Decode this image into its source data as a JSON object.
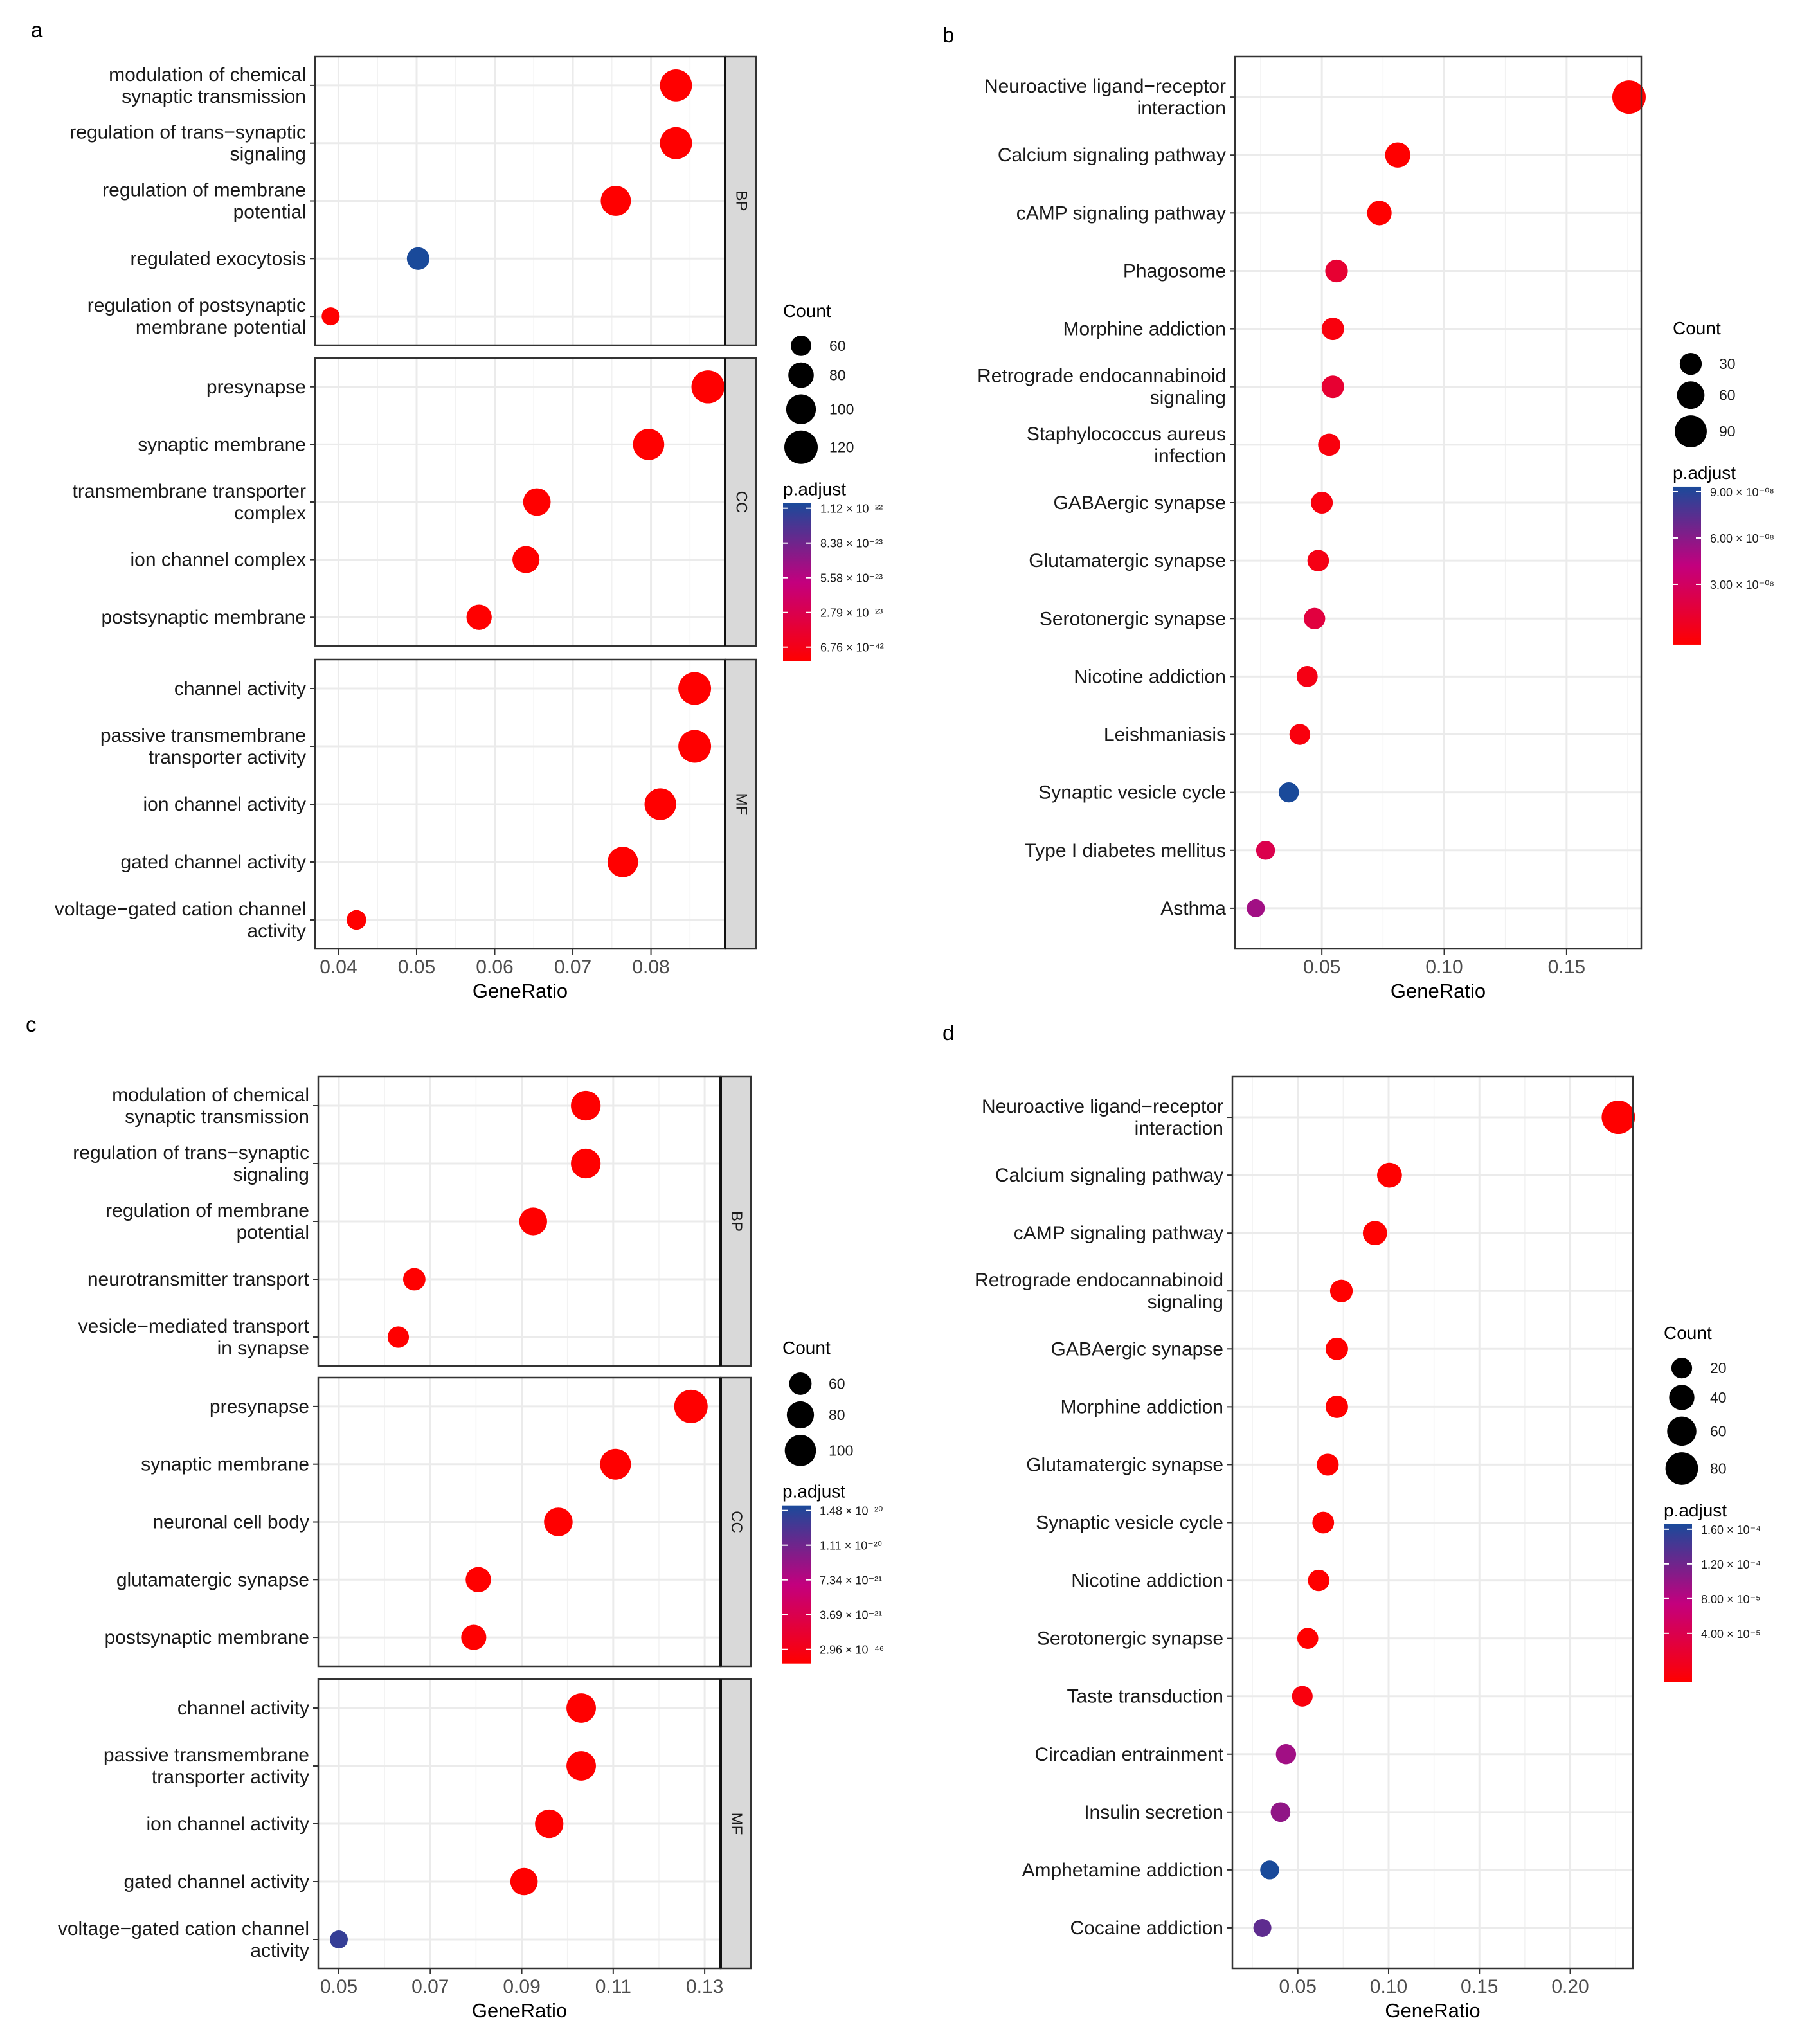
{
  "colors": {
    "low_p": "#ff0000",
    "mid_p": "#c3007e",
    "high_p": "#1a4a9a",
    "panel_bg": "#ffffff",
    "grid": "#ebebeb",
    "strip_bg": "#d9d9d9"
  },
  "chart_data": [
    {
      "id": "a",
      "type": "scatter",
      "layout": "go",
      "panel_label": "a",
      "xlabel": "GeneRatio",
      "xlim": [
        0.037,
        0.0895
      ],
      "xticks": [
        0.04,
        0.05,
        0.06,
        0.07,
        0.08
      ],
      "xtick_labels": [
        "0.04",
        "0.05",
        "0.06",
        "0.07",
        "0.08"
      ],
      "facets": [
        {
          "name": "BP",
          "points": [
            {
              "lines": [
                "modulation of chemical",
                "synaptic transmission"
              ],
              "x": 0.0832,
              "count": 112,
              "p": 0.0
            },
            {
              "lines": [
                "regulation of trans−synaptic",
                "signaling"
              ],
              "x": 0.0832,
              "count": 112,
              "p": 0.0
            },
            {
              "lines": [
                "regulation of membrane",
                "potential"
              ],
              "x": 0.0755,
              "count": 102,
              "p": 0.0
            },
            {
              "lines": [
                "regulated exocytosis"
              ],
              "x": 0.0502,
              "count": 68,
              "p": 1.0
            },
            {
              "lines": [
                "regulation of postsynaptic",
                "membrane potential"
              ],
              "x": 0.039,
              "count": 52,
              "p": 0.0
            }
          ]
        },
        {
          "name": "CC",
          "points": [
            {
              "lines": [
                "presynapse"
              ],
              "x": 0.0873,
              "count": 118,
              "p": 0.0
            },
            {
              "lines": [
                "synaptic membrane"
              ],
              "x": 0.0797,
              "count": 108,
              "p": 0.0
            },
            {
              "lines": [
                "transmembrane transporter",
                "complex"
              ],
              "x": 0.0654,
              "count": 89,
              "p": 0.0
            },
            {
              "lines": [
                "ion channel complex"
              ],
              "x": 0.064,
              "count": 87,
              "p": 0.0
            },
            {
              "lines": [
                "postsynaptic membrane"
              ],
              "x": 0.058,
              "count": 79,
              "p": 0.0
            }
          ]
        },
        {
          "name": "MF",
          "points": [
            {
              "lines": [
                "channel activity"
              ],
              "x": 0.0856,
              "count": 116,
              "p": 0.0
            },
            {
              "lines": [
                "passive transmembrane",
                "transporter activity"
              ],
              "x": 0.0856,
              "count": 116,
              "p": 0.0
            },
            {
              "lines": [
                "ion channel activity"
              ],
              "x": 0.0812,
              "count": 110,
              "p": 0.0
            },
            {
              "lines": [
                "gated channel activity"
              ],
              "x": 0.0764,
              "count": 104,
              "p": 0.0
            },
            {
              "lines": [
                "voltage−gated cation channel",
                "activity"
              ],
              "x": 0.0423,
              "count": 57,
              "p": 0.0
            }
          ]
        }
      ],
      "size_legend": {
        "title": "Count",
        "values": [
          60,
          80,
          100,
          120
        ],
        "labels": [
          "60",
          "80",
          "100",
          "120"
        ]
      },
      "color_legend": {
        "title": "p.adjust",
        "labels": [
          "1.12 × 10⁻²²",
          "8.38 × 10⁻²³",
          "5.58 × 10⁻²³",
          "2.79 × 10⁻²³",
          "6.76 × 10⁻⁴²"
        ]
      }
    },
    {
      "id": "b",
      "type": "scatter",
      "layout": "kegg",
      "panel_label": "b",
      "xlabel": "GeneRatio",
      "xlim": [
        0.0145,
        0.1805
      ],
      "xticks": [
        0.05,
        0.1,
        0.15
      ],
      "xtick_labels": [
        "0.05",
        "0.10",
        "0.15"
      ],
      "points": [
        {
          "lines": [
            "Neuroactive ligand−receptor",
            "interaction"
          ],
          "x": 0.1755,
          "count": 100,
          "p": 0.0
        },
        {
          "lines": [
            "Calcium signaling pathway"
          ],
          "x": 0.081,
          "count": 47,
          "p": 0.0
        },
        {
          "lines": [
            "cAMP signaling pathway"
          ],
          "x": 0.0735,
          "count": 43,
          "p": 0.0
        },
        {
          "lines": [
            "Phagosome"
          ],
          "x": 0.056,
          "count": 33,
          "p": 0.2
        },
        {
          "lines": [
            "Morphine addiction"
          ],
          "x": 0.0545,
          "count": 32,
          "p": 0.05
        },
        {
          "lines": [
            "Retrograde endocannabinoid",
            "signaling"
          ],
          "x": 0.0545,
          "count": 32,
          "p": 0.2
        },
        {
          "lines": [
            "Staphylococcus aureus",
            "infection"
          ],
          "x": 0.053,
          "count": 31,
          "p": 0.05
        },
        {
          "lines": [
            "GABAergic synapse"
          ],
          "x": 0.05,
          "count": 29,
          "p": 0.05
        },
        {
          "lines": [
            "Glutamatergic synapse"
          ],
          "x": 0.0485,
          "count": 28,
          "p": 0.08
        },
        {
          "lines": [
            "Serotonergic synapse"
          ],
          "x": 0.047,
          "count": 27,
          "p": 0.25
        },
        {
          "lines": [
            "Nicotine addiction"
          ],
          "x": 0.044,
          "count": 25,
          "p": 0.08
        },
        {
          "lines": [
            "Leishmaniasis"
          ],
          "x": 0.041,
          "count": 24,
          "p": 0.05
        },
        {
          "lines": [
            "Synaptic vesicle cycle"
          ],
          "x": 0.0365,
          "count": 21,
          "p": 1.0
        },
        {
          "lines": [
            "Type I diabetes mellitus"
          ],
          "x": 0.027,
          "count": 16,
          "p": 0.3
        },
        {
          "lines": [
            "Asthma"
          ],
          "x": 0.023,
          "count": 12,
          "p": 0.6
        }
      ],
      "size_legend": {
        "title": "Count",
        "values": [
          30,
          60,
          90
        ],
        "labels": [
          "30",
          "60",
          "90"
        ]
      },
      "color_legend": {
        "title": "p.adjust",
        "labels": [
          "9.00 × 10⁻⁰⁸",
          "6.00 × 10⁻⁰⁸",
          "3.00 × 10⁻⁰⁸"
        ]
      }
    },
    {
      "id": "c",
      "type": "scatter",
      "layout": "go",
      "panel_label": "c",
      "xlabel": "GeneRatio",
      "xlim": [
        0.0455,
        0.1335
      ],
      "xticks": [
        0.05,
        0.07,
        0.09,
        0.11,
        0.13
      ],
      "xtick_labels": [
        "0.05",
        "0.07",
        "0.09",
        "0.11",
        "0.13"
      ],
      "facets": [
        {
          "name": "BP",
          "points": [
            {
              "lines": [
                "modulation of chemical",
                "synaptic transmission"
              ],
              "x": 0.104,
              "count": 92,
              "p": 0.0
            },
            {
              "lines": [
                "regulation of trans−synaptic",
                "signaling"
              ],
              "x": 0.104,
              "count": 92,
              "p": 0.0
            },
            {
              "lines": [
                "regulation of membrane",
                "potential"
              ],
              "x": 0.0925,
              "count": 83,
              "p": 0.0
            },
            {
              "lines": [
                "neurotransmitter transport"
              ],
              "x": 0.0665,
              "count": 60,
              "p": 0.0
            },
            {
              "lines": [
                "vesicle−mediated transport",
                "in synapse"
              ],
              "x": 0.063,
              "count": 56,
              "p": 0.0
            }
          ]
        },
        {
          "name": "CC",
          "points": [
            {
              "lines": [
                "presynapse"
              ],
              "x": 0.127,
              "count": 112,
              "p": 0.0
            },
            {
              "lines": [
                "synaptic membrane"
              ],
              "x": 0.1105,
              "count": 98,
              "p": 0.0
            },
            {
              "lines": [
                "neuronal cell body"
              ],
              "x": 0.098,
              "count": 87,
              "p": 0.0
            },
            {
              "lines": [
                "glutamatergic synapse"
              ],
              "x": 0.0805,
              "count": 72,
              "p": 0.0
            },
            {
              "lines": [
                "postsynaptic membrane"
              ],
              "x": 0.0795,
              "count": 71,
              "p": 0.0
            }
          ]
        },
        {
          "name": "MF",
          "points": [
            {
              "lines": [
                "channel activity"
              ],
              "x": 0.103,
              "count": 91,
              "p": 0.0
            },
            {
              "lines": [
                "passive transmembrane",
                "transporter activity"
              ],
              "x": 0.103,
              "count": 91,
              "p": 0.0
            },
            {
              "lines": [
                "ion channel activity"
              ],
              "x": 0.096,
              "count": 86,
              "p": 0.0
            },
            {
              "lines": [
                "gated channel activity"
              ],
              "x": 0.0905,
              "count": 81,
              "p": 0.0
            },
            {
              "lines": [
                "voltage−gated cation channel",
                "activity"
              ],
              "x": 0.05,
              "count": 45,
              "p": 0.92
            }
          ]
        }
      ],
      "size_legend": {
        "title": "Count",
        "values": [
          60,
          80,
          100
        ],
        "labels": [
          "60",
          "80",
          "100"
        ]
      },
      "color_legend": {
        "title": "p.adjust",
        "labels": [
          "1.48 × 10⁻²⁰",
          "1.11 × 10⁻²⁰",
          "7.34 × 10⁻²¹",
          "3.69 × 10⁻²¹",
          "2.96 × 10⁻⁴⁶"
        ]
      }
    },
    {
      "id": "d",
      "type": "scatter",
      "layout": "kegg",
      "panel_label": "d",
      "xlabel": "GeneRatio",
      "xlim": [
        0.014,
        0.2345
      ],
      "xticks": [
        0.05,
        0.1,
        0.15,
        0.2
      ],
      "xtick_labels": [
        "0.05",
        "0.10",
        "0.15",
        "0.20"
      ],
      "points": [
        {
          "lines": [
            "Neuroactive ligand−receptor",
            "interaction"
          ],
          "x": 0.2265,
          "count": 85,
          "p": 0.0
        },
        {
          "lines": [
            "Calcium signaling pathway"
          ],
          "x": 0.1005,
          "count": 38,
          "p": 0.0
        },
        {
          "lines": [
            "cAMP signaling pathway"
          ],
          "x": 0.0925,
          "count": 35,
          "p": 0.0
        },
        {
          "lines": [
            "Retrograde endocannabinoid",
            "signaling"
          ],
          "x": 0.074,
          "count": 28,
          "p": 0.0
        },
        {
          "lines": [
            "GABAergic synapse"
          ],
          "x": 0.0715,
          "count": 27,
          "p": 0.0
        },
        {
          "lines": [
            "Morphine addiction"
          ],
          "x": 0.0715,
          "count": 27,
          "p": 0.0
        },
        {
          "lines": [
            "Glutamatergic synapse"
          ],
          "x": 0.0665,
          "count": 25,
          "p": 0.0
        },
        {
          "lines": [
            "Synaptic vesicle cycle"
          ],
          "x": 0.064,
          "count": 24,
          "p": 0.0
        },
        {
          "lines": [
            "Nicotine addiction"
          ],
          "x": 0.0615,
          "count": 23,
          "p": 0.0
        },
        {
          "lines": [
            "Serotonergic synapse"
          ],
          "x": 0.0555,
          "count": 21,
          "p": 0.0
        },
        {
          "lines": [
            "Taste transduction"
          ],
          "x": 0.0525,
          "count": 20,
          "p": 0.05
        },
        {
          "lines": [
            "Circadian entrainment"
          ],
          "x": 0.0435,
          "count": 18,
          "p": 0.6
        },
        {
          "lines": [
            "Insulin secretion"
          ],
          "x": 0.0405,
          "count": 16,
          "p": 0.65
        },
        {
          "lines": [
            "Amphetamine addiction"
          ],
          "x": 0.0345,
          "count": 13,
          "p": 1.0
        },
        {
          "lines": [
            "Cocaine addiction"
          ],
          "x": 0.0305,
          "count": 10,
          "p": 0.8
        }
      ],
      "size_legend": {
        "title": "Count",
        "values": [
          20,
          40,
          60,
          80
        ],
        "labels": [
          "20",
          "40",
          "60",
          "80"
        ]
      },
      "color_legend": {
        "title": "p.adjust",
        "labels": [
          "1.60 × 10⁻⁴",
          "1.20 × 10⁻⁴",
          "8.00 × 10⁻⁵",
          "4.00 × 10⁻⁵"
        ]
      }
    }
  ]
}
